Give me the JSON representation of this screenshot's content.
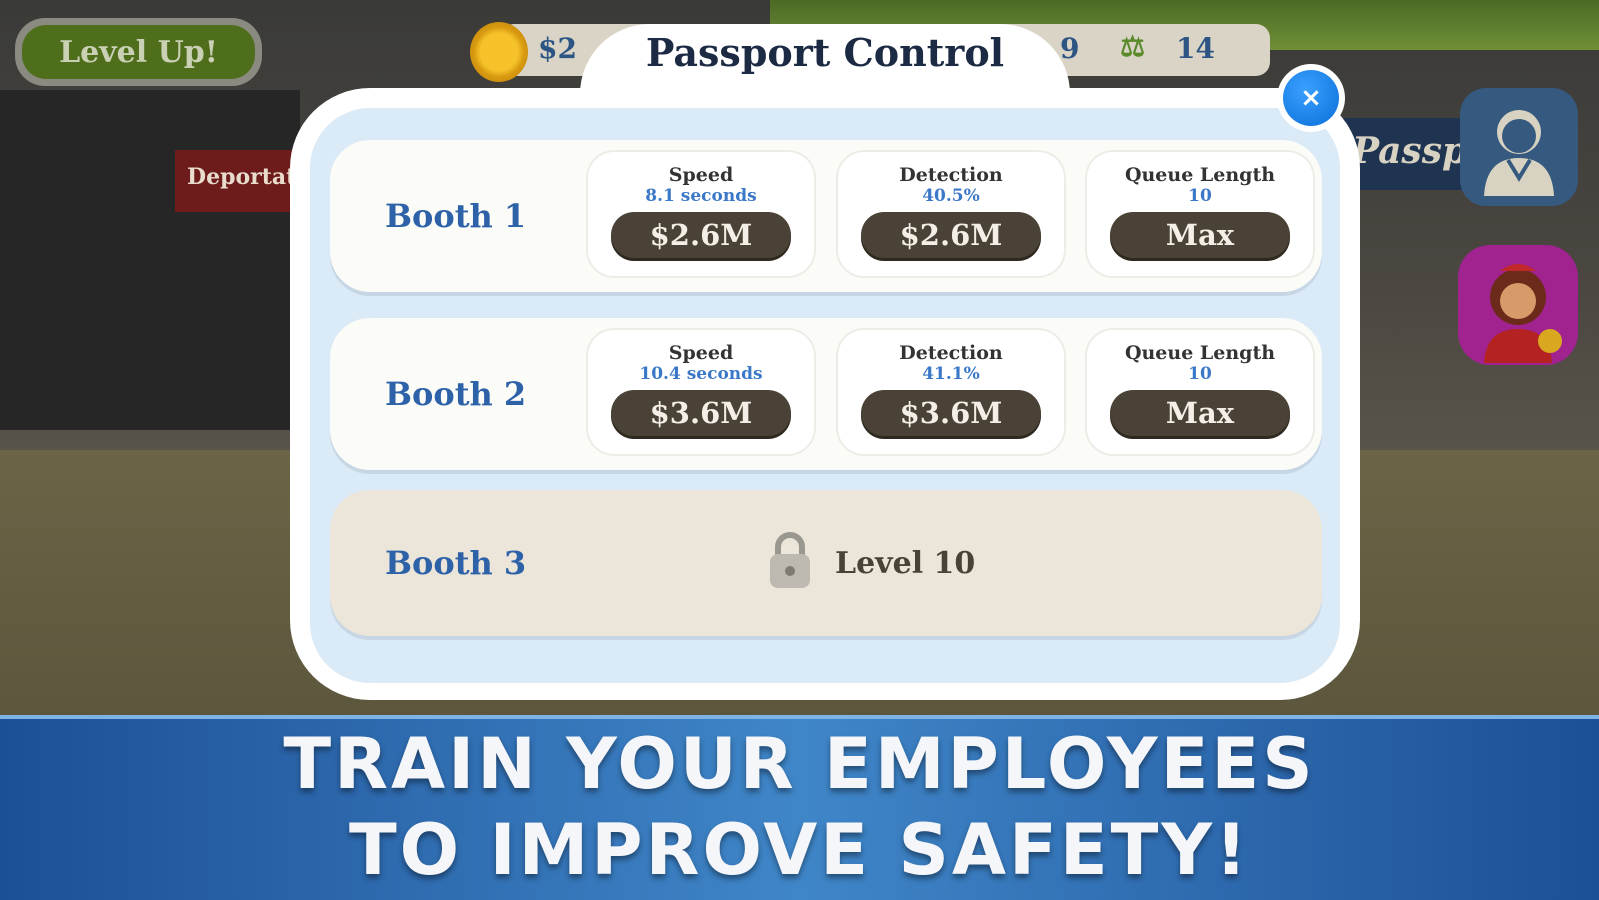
{
  "hud": {
    "level_up_label": "Level Up!",
    "money_partial": "$2",
    "stat_a": "9",
    "stat_b": "14",
    "stat_b_icon": "scales-icon"
  },
  "background": {
    "deportation_sign": "Deportat",
    "passport_sign": "Passp"
  },
  "dialog": {
    "title": "Passport Control",
    "close_label": "×",
    "booths": [
      {
        "name": "Booth 1",
        "stats": [
          {
            "label": "Speed",
            "value": "8.1 seconds",
            "button": "$2.6M"
          },
          {
            "label": "Detection",
            "value": "40.5%",
            "button": "$2.6M"
          },
          {
            "label": "Queue Length",
            "value": "10",
            "button": "Max"
          }
        ]
      },
      {
        "name": "Booth 2",
        "stats": [
          {
            "label": "Speed",
            "value": "10.4 seconds",
            "button": "$3.6M"
          },
          {
            "label": "Detection",
            "value": "41.1%",
            "button": "$3.6M"
          },
          {
            "label": "Queue Length",
            "value": "10",
            "button": "Max"
          }
        ]
      },
      {
        "name": "Booth 3",
        "locked": true,
        "unlock_text": "Level 10"
      }
    ]
  },
  "banner": {
    "line1": "TRAIN YOUR EMPLOYEES",
    "line2": "TO IMPROVE SAFETY!"
  },
  "colors": {
    "accent_blue": "#2e62a8",
    "button_dark": "#4a4236",
    "banner_blue": "#3f86c8"
  }
}
